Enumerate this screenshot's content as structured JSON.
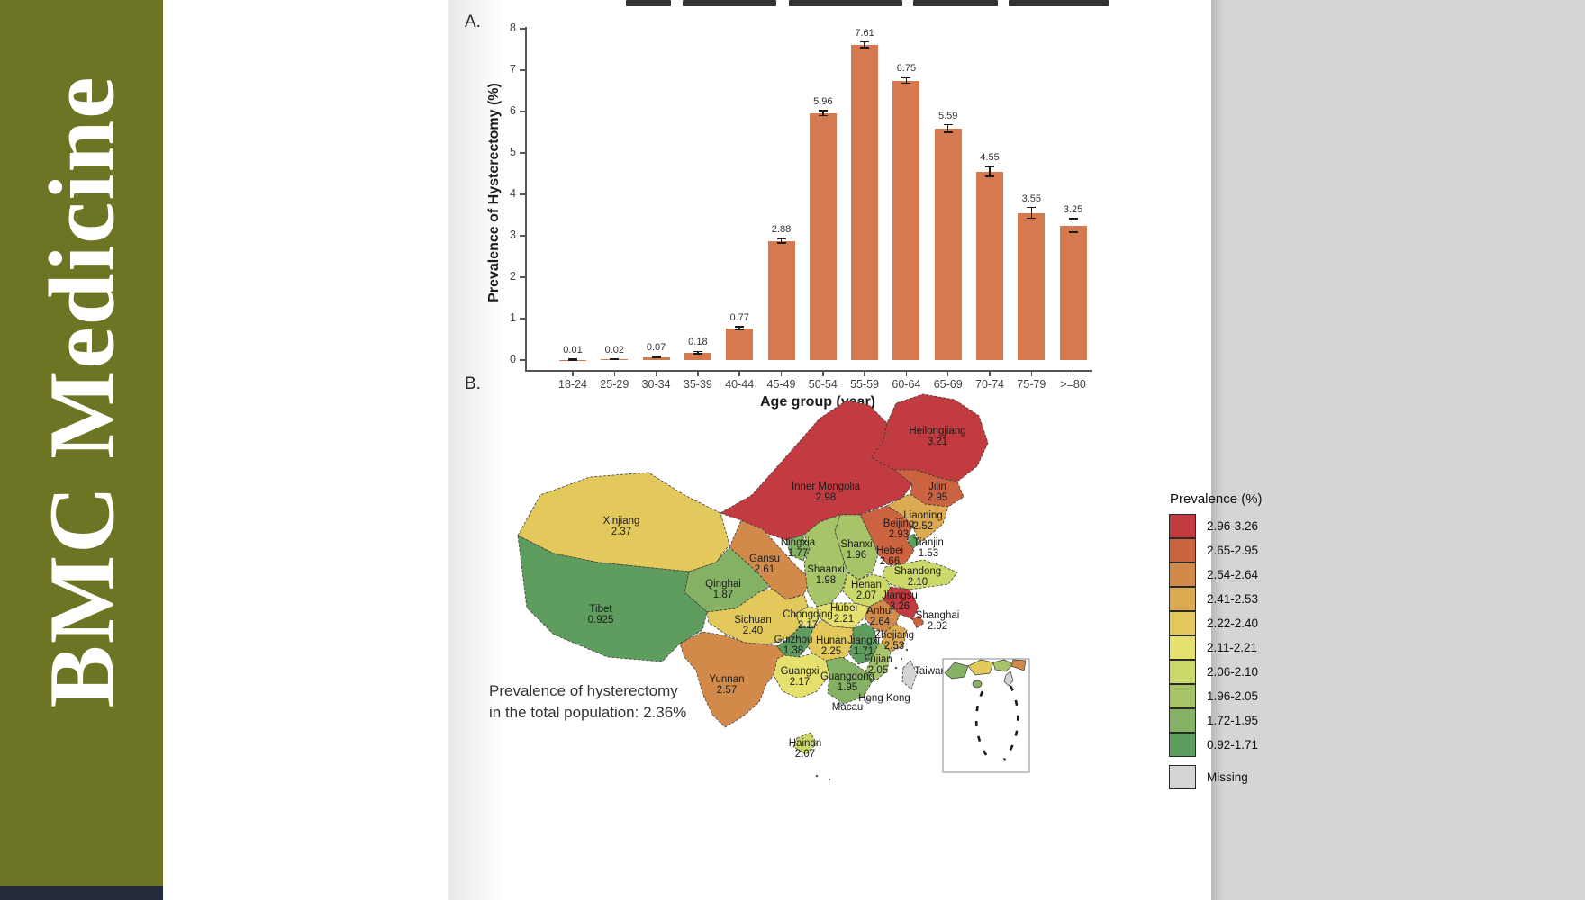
{
  "banner": {
    "journal_title": "BMC Medicine"
  },
  "figure": {
    "panel_a_label": "A.",
    "panel_b_label": "B.",
    "annotation": {
      "line1": "Prevalence of hysterectomy",
      "line2": "in the total population: 2.36%"
    }
  },
  "chart_data": [
    {
      "type": "bar",
      "title": "",
      "ylabel": "Prevalence of Hysterectomy (%)",
      "xlabel": "Age group (year)",
      "ylim": [
        0,
        8
      ],
      "yticks": [
        0,
        1,
        2,
        3,
        4,
        5,
        6,
        7,
        8
      ],
      "grid": false,
      "legend_position": "none",
      "bar_color": "#d5794f",
      "categories": [
        "18-24",
        "25-29",
        "30-34",
        "35-39",
        "40-44",
        "45-49",
        "50-54",
        "55-59",
        "60-64",
        "65-69",
        "70-74",
        "75-79",
        ">=80"
      ],
      "values": [
        0.01,
        0.02,
        0.07,
        0.18,
        0.77,
        2.88,
        5.96,
        7.61,
        6.75,
        5.59,
        4.55,
        3.55,
        3.25
      ],
      "value_labels": [
        "0.01",
        "0.02",
        "0.07",
        "0.18",
        "0.77",
        "2.88",
        "5.96",
        "7.61",
        "6.75",
        "5.59",
        "4.55",
        "3.55",
        "3.25"
      ],
      "errors": [
        0.01,
        0.01,
        0.02,
        0.03,
        0.03,
        0.05,
        0.06,
        0.07,
        0.07,
        0.09,
        0.12,
        0.13,
        0.16
      ]
    },
    {
      "type": "heatmap",
      "subtype": "choropleth-map-china-provinces",
      "legend_title": "Prevalence (%)",
      "legend_bins": [
        {
          "range": "2.96-3.26",
          "color": "#c23b40"
        },
        {
          "range": "2.65-2.95",
          "color": "#cb6340"
        },
        {
          "range": "2.54-2.64",
          "color": "#d28a4a"
        },
        {
          "range": "2.41-2.53",
          "color": "#dcaa50"
        },
        {
          "range": "2.22-2.40",
          "color": "#e3c85c"
        },
        {
          "range": "2.11-2.21",
          "color": "#e6e06f"
        },
        {
          "range": "2.06-2.10",
          "color": "#ccd86a"
        },
        {
          "range": "1.96-2.05",
          "color": "#a8c468"
        },
        {
          "range": "1.72-1.95",
          "color": "#84b163"
        },
        {
          "range": "0.92-1.71",
          "color": "#5f9d5e"
        }
      ],
      "missing_bin": {
        "label": "Missing",
        "color": "#d4d4d4"
      },
      "total_annotation": "Prevalence of hysterectomy in the total population: 2.36%",
      "regions": [
        {
          "name": "Heilongjiang",
          "value": "3.21",
          "bin": 0
        },
        {
          "name": "Inner Mongolia",
          "value": "2.98",
          "bin": 0
        },
        {
          "name": "Jilin",
          "value": "2.95",
          "bin": 1
        },
        {
          "name": "Liaoning",
          "value": "2.52",
          "bin": 3
        },
        {
          "name": "Beijing",
          "value": "2.93",
          "bin": 1
        },
        {
          "name": "Tianjin",
          "value": "1.53",
          "bin": 9
        },
        {
          "name": "Hebei",
          "value": "2.66",
          "bin": 1
        },
        {
          "name": "Shanxi",
          "value": "1.96",
          "bin": 7
        },
        {
          "name": "Shandong",
          "value": "2.10",
          "bin": 6
        },
        {
          "name": "Xinjiang",
          "value": "2.37",
          "bin": 4
        },
        {
          "name": "Ningxia",
          "value": "1.77",
          "bin": 8
        },
        {
          "name": "Gansu",
          "value": "2.61",
          "bin": 2
        },
        {
          "name": "Qinghai",
          "value": "1.87",
          "bin": 8
        },
        {
          "name": "Shaanxi",
          "value": "1.98",
          "bin": 7
        },
        {
          "name": "Henan",
          "value": "2.07",
          "bin": 6
        },
        {
          "name": "Jiangsu",
          "value": "3.26",
          "bin": 0
        },
        {
          "name": "Shanghai",
          "value": "2.92",
          "bin": 1
        },
        {
          "name": "Anhui",
          "value": "2.64",
          "bin": 2
        },
        {
          "name": "Zhejiang",
          "value": "2.53",
          "bin": 3
        },
        {
          "name": "Hubei",
          "value": "2.21",
          "bin": 5
        },
        {
          "name": "Chongqing",
          "value": "2.17",
          "bin": 5
        },
        {
          "name": "Sichuan",
          "value": "2.40",
          "bin": 4
        },
        {
          "name": "Tibet",
          "value": "0.925",
          "bin": 9
        },
        {
          "name": "Yunnan",
          "value": "2.57",
          "bin": 2
        },
        {
          "name": "Guizhou",
          "value": "1.38",
          "bin": 9
        },
        {
          "name": "Hunan",
          "value": "2.25",
          "bin": 4
        },
        {
          "name": "Jiangxi",
          "value": "1.71",
          "bin": 9
        },
        {
          "name": "Fujian",
          "value": "2.05",
          "bin": 7
        },
        {
          "name": "Guangdong",
          "value": "1.95",
          "bin": 8
        },
        {
          "name": "Guangxi",
          "value": "2.17",
          "bin": 5
        },
        {
          "name": "Hainan",
          "value": "2.07",
          "bin": 6
        },
        {
          "name": "Taiwan",
          "value": null,
          "bin": "missing"
        },
        {
          "name": "Hong Kong",
          "value": null,
          "bin": "missing"
        },
        {
          "name": "Macau",
          "value": null,
          "bin": "missing"
        }
      ]
    }
  ]
}
